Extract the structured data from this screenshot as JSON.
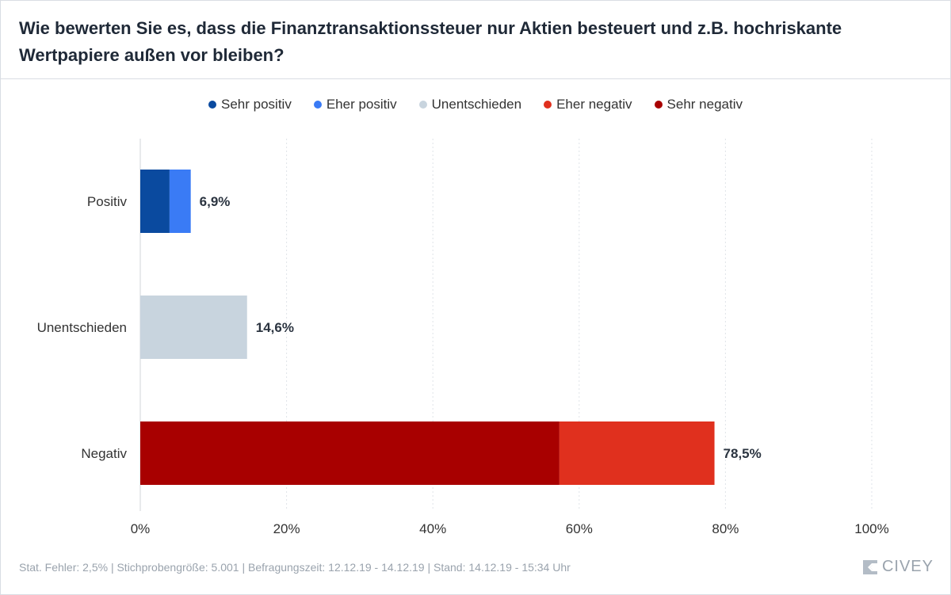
{
  "title": "Wie bewerten Sie es, dass die Finanztransaktionssteuer nur Aktien besteuert und z.B. hochriskante Wertpapiere außen vor bleiben?",
  "footer": "Stat. Fehler: 2,5% | Stichprobengröße: 5.001 | Befragungszeit: 12.12.19 - 14.12.19 | Stand: 14.12.19 - 15:34 Uhr",
  "brand": "CIVEY",
  "chart_data": {
    "type": "bar",
    "orientation": "horizontal",
    "stacked": true,
    "xlim": [
      0,
      100
    ],
    "xticks": [
      "0%",
      "20%",
      "40%",
      "60%",
      "80%",
      "100%"
    ],
    "grid": true,
    "legend_position": "top",
    "legend": [
      {
        "name": "Sehr positiv",
        "color": "#0a4a9f"
      },
      {
        "name": "Eher positiv",
        "color": "#3a7bf5"
      },
      {
        "name": "Unentschieden",
        "color": "#c8d4de"
      },
      {
        "name": "Eher negativ",
        "color": "#e0301e"
      },
      {
        "name": "Sehr negativ",
        "color": "#a80000"
      }
    ],
    "categories": [
      "Positiv",
      "Unentschieden",
      "Negativ"
    ],
    "totals_labels": [
      "6,9%",
      "14,6%",
      "78,5%"
    ],
    "rows": [
      {
        "category": "Positiv",
        "total": 6.9,
        "segments": [
          {
            "series": "Sehr positiv",
            "value": 4.0,
            "color": "#0a4a9f"
          },
          {
            "series": "Eher positiv",
            "value": 2.9,
            "color": "#3a7bf5"
          }
        ]
      },
      {
        "category": "Unentschieden",
        "total": 14.6,
        "segments": [
          {
            "series": "Unentschieden",
            "value": 14.6,
            "color": "#c8d4de"
          }
        ]
      },
      {
        "category": "Negativ",
        "total": 78.5,
        "segments": [
          {
            "series": "Sehr negativ",
            "value": 57.3,
            "color": "#a80000"
          },
          {
            "series": "Eher negativ",
            "value": 21.2,
            "color": "#e0301e"
          }
        ]
      }
    ]
  }
}
